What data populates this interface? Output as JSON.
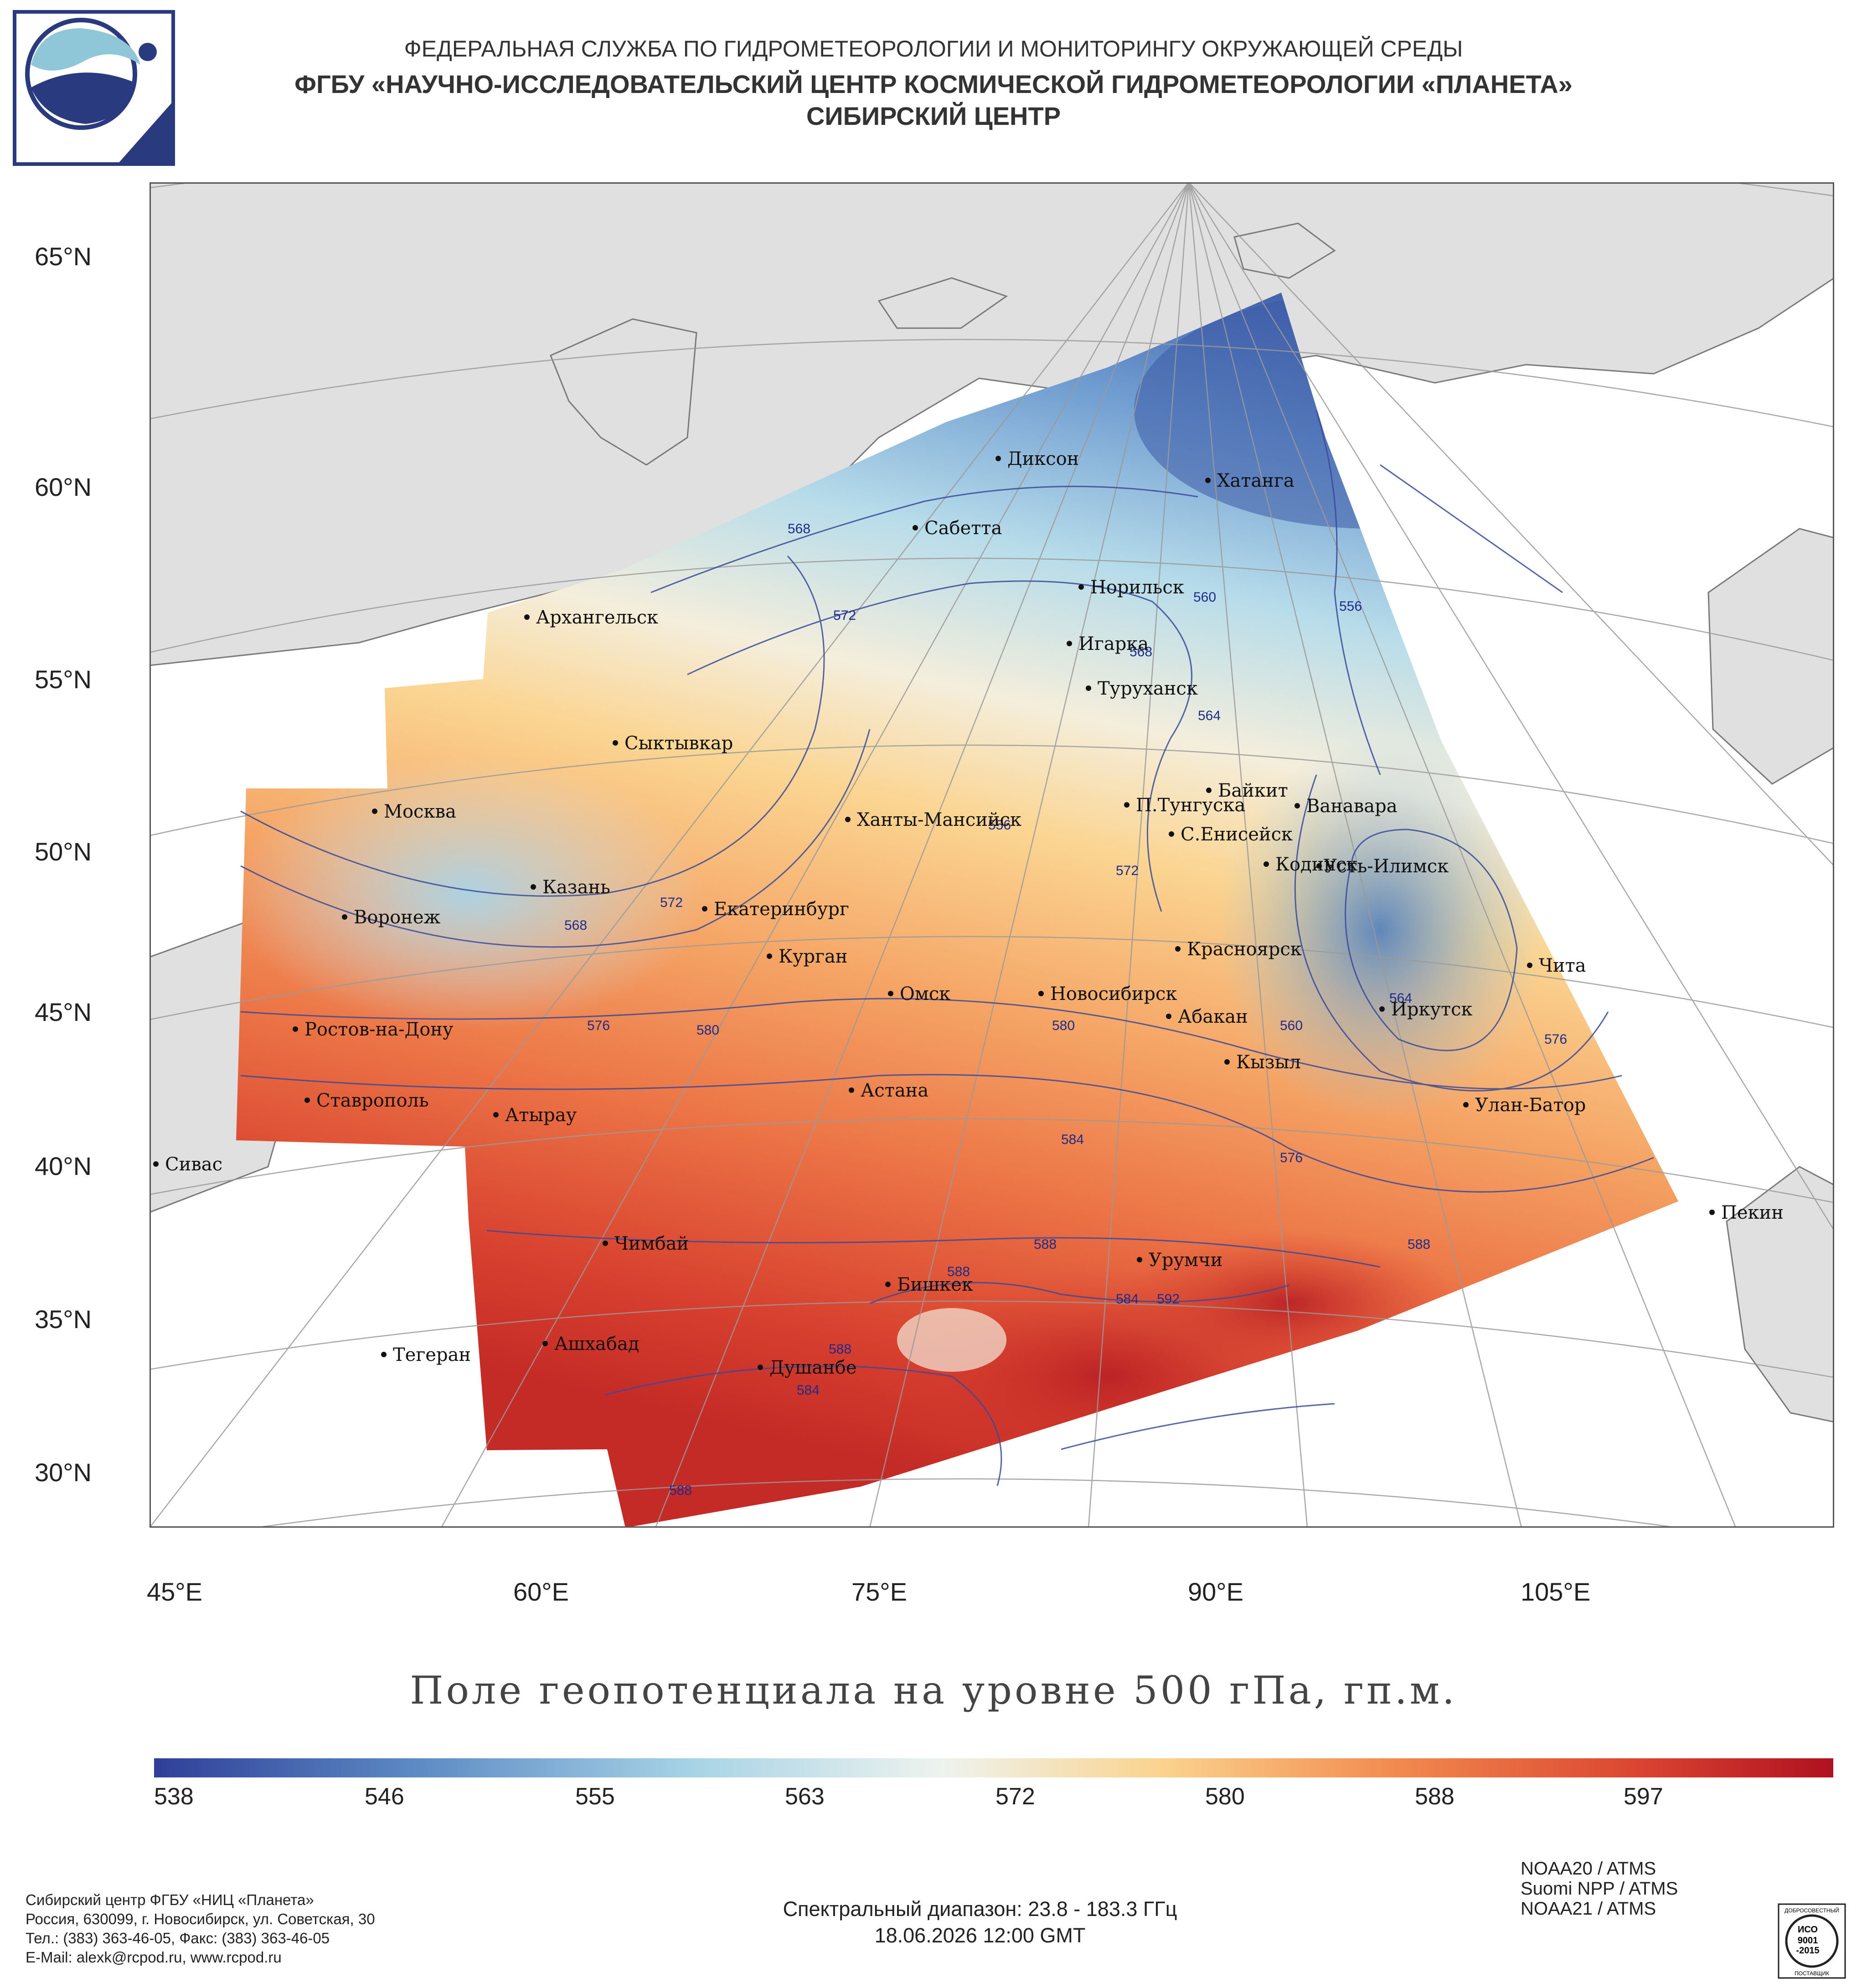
{
  "header": {
    "line1": "ФЕДЕРАЛЬНАЯ СЛУЖБА ПО ГИДРОМЕТЕОРОЛОГИИ И МОНИТОРИНГУ ОКРУЖАЮЩЕЙ СРЕДЫ",
    "line2": "ФГБУ «НАУЧНО-ИССЛЕДОВАТЕЛЬСКИЙ ЦЕНТР КОСМИЧЕСКОЙ ГИДРОМЕТЕОРОЛОГИИ «ПЛАНЕТА»",
    "line3": "СИБИРСКИЙ ЦЕНТР"
  },
  "map": {
    "lat_labels": [
      "65°N",
      "60°N",
      "55°N",
      "50°N",
      "45°N",
      "40°N",
      "35°N",
      "30°N"
    ],
    "lon_labels": [
      "45°E",
      "60°E",
      "75°E",
      "90°E",
      "105°E"
    ],
    "cities": [
      {
        "name": "Диксон"
      },
      {
        "name": "Хатанга"
      },
      {
        "name": "Сабетта"
      },
      {
        "name": "Архангельск"
      },
      {
        "name": "Норильск"
      },
      {
        "name": "Игарка"
      },
      {
        "name": "Туруханск"
      },
      {
        "name": "Сыктывкар"
      },
      {
        "name": "Байкит"
      },
      {
        "name": "Москва"
      },
      {
        "name": "Ханты-Мансийск"
      },
      {
        "name": "П.Тунгуска"
      },
      {
        "name": "Ванавара"
      },
      {
        "name": "С.Енисейск"
      },
      {
        "name": "Казань"
      },
      {
        "name": "Кодинск"
      },
      {
        "name": "Усть-Илимск"
      },
      {
        "name": "Воронеж"
      },
      {
        "name": "Екатеринбург"
      },
      {
        "name": "Красноярск"
      },
      {
        "name": "Курган"
      },
      {
        "name": "Чита"
      },
      {
        "name": "Омск"
      },
      {
        "name": "Новосибирск"
      },
      {
        "name": "Иркутск"
      },
      {
        "name": "Абакан"
      },
      {
        "name": "Ростов-на-Дону"
      },
      {
        "name": "Кызыл"
      },
      {
        "name": "Астана"
      },
      {
        "name": "Ставрополь"
      },
      {
        "name": "Улан-Батор"
      },
      {
        "name": "Атырау"
      },
      {
        "name": "Сивас"
      },
      {
        "name": "Пекин"
      },
      {
        "name": "Чимбай"
      },
      {
        "name": "Урумчи"
      },
      {
        "name": "Бишкек"
      },
      {
        "name": "Ашхабад"
      },
      {
        "name": "Тегеран"
      },
      {
        "name": "Душанбе"
      }
    ],
    "contour_labels": [
      "568",
      "572",
      "560",
      "556",
      "568",
      "564",
      "556",
      "572",
      "568",
      "572",
      "576",
      "580",
      "580",
      "564",
      "560",
      "576",
      "584",
      "576",
      "588",
      "588",
      "588",
      "584",
      "592",
      "588",
      "584",
      "588"
    ]
  },
  "title": "Поле геопотенциала на уровне 500 гПа, гп.м.",
  "colorbar": {
    "ticks": [
      "538",
      "546",
      "555",
      "563",
      "572",
      "580",
      "588",
      "597"
    ],
    "colors": {
      "min": "#2f3f99",
      "low": "#5e8cc5",
      "mid_low": "#a7d3e6",
      "mid": "#eef3ee",
      "mid_high": "#fbd38e",
      "high": "#f28a4e",
      "max": "#b0111f"
    }
  },
  "footer": {
    "left": [
      "Сибирский центр ФГБУ «НИЦ «Планета»",
      "Россия, 630099, г. Новосибирск, ул. Советская, 30",
      "Тел.: (383) 363-46-05, Факс: (383) 363-46-05",
      "E-Mail: alexk@rcpod.ru, www.rcpod.ru"
    ],
    "spectral": "Спектральный диапазон: 23.8 - 183.3 ГГц",
    "datetime": "18.06.2026 12:00 GMT",
    "satellites": [
      "NOAA20 / ATMS",
      "Suomi NPP / ATMS",
      "NOAA21 / ATMS"
    ],
    "iso": {
      "top": "ДОБРОСОВЕСТНЫЙ",
      "line1": "ИСО",
      "line2": "9001",
      "line3": "-2015",
      "bottom": "ПОСТАВЩИК"
    }
  }
}
